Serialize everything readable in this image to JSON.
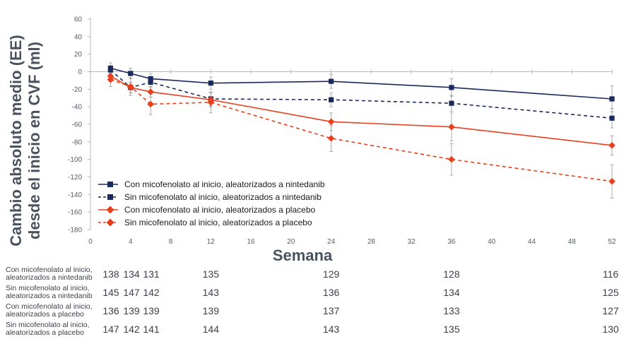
{
  "chart_data": {
    "type": "line",
    "ylabel_line1": "Cambio absoluto medio (EE)",
    "ylabel_line2": "desde el inicio en CVF (ml)",
    "xlabel": "Semana",
    "ylim": [
      -180,
      60
    ],
    "xlim": [
      0,
      52
    ],
    "yticks": [
      "60",
      "40",
      "20",
      "0",
      "-20",
      "-40",
      "-60",
      "-80",
      "-100",
      "-120",
      "-140",
      "-160",
      "-180"
    ],
    "xticks": [
      "0",
      "4",
      "8",
      "12",
      "16",
      "20",
      "24",
      "28",
      "32",
      "36",
      "40",
      "44",
      "48",
      "52"
    ],
    "grid": "horizontal line at 0",
    "legend_position": "bottom-left",
    "series": [
      {
        "name": "Con micofenolato al inicio, aleatorizados a nintedanib",
        "color": "#1b2a5c",
        "line": "solid",
        "marker": "square",
        "x": [
          2,
          4,
          6,
          12,
          24,
          36,
          52
        ],
        "y": [
          4,
          -2,
          -8,
          -13,
          -11,
          -18,
          -31
        ],
        "err": [
          6,
          6,
          6,
          7,
          8,
          10,
          15
        ]
      },
      {
        "name": "Sin micofenolato al inicio, aleatorizados a nintedanib",
        "color": "#1b2a5c",
        "line": "dashed",
        "marker": "square",
        "x": [
          2,
          4,
          6,
          12,
          24,
          36,
          52
        ],
        "y": [
          2,
          -18,
          -12,
          -31,
          -32,
          -36,
          -53
        ],
        "err": [
          5,
          6,
          6,
          8,
          8,
          9,
          11
        ]
      },
      {
        "name": "Con micofenolato al inicio, aleatorizados a placebo",
        "color": "#e8401c",
        "line": "solid",
        "marker": "diamond",
        "x": [
          2,
          4,
          6,
          12,
          24,
          36,
          52
        ],
        "y": [
          -5,
          -18,
          -23,
          -32,
          -57,
          -63,
          -84
        ],
        "err": [
          6,
          6,
          6,
          8,
          10,
          16,
          11
        ]
      },
      {
        "name": "Sin micofenolato al inicio, aleatorizados a placebo",
        "color": "#e8401c",
        "line": "dashed",
        "marker": "diamond",
        "x": [
          2,
          4,
          6,
          12,
          24,
          36,
          52
        ],
        "y": [
          -9,
          -17,
          -37,
          -35,
          -76,
          -100,
          -125
        ],
        "err": [
          8,
          10,
          12,
          12,
          15,
          18,
          19
        ]
      }
    ]
  },
  "numbers_at_risk": {
    "weeks": [
      2,
      4,
      6,
      12,
      24,
      36,
      52
    ],
    "rows": [
      {
        "label": "Con micofenolato al inicio, aleatorizados a nintedanib",
        "values": [
          "138",
          "134",
          "131",
          "135",
          "129",
          "128",
          "116"
        ]
      },
      {
        "label": "Sin micofenolato al inicio, aleatorizados a nintedanib",
        "values": [
          "145",
          "147",
          "142",
          "143",
          "136",
          "134",
          "125"
        ]
      },
      {
        "label": "Con micofenolato al inicio, aleatorizados a placebo",
        "values": [
          "136",
          "139",
          "139",
          "139",
          "137",
          "133",
          "127"
        ]
      },
      {
        "label": "Sin micofenolato al inicio, aleatorizados a placebo",
        "values": [
          "147",
          "142",
          "141",
          "144",
          "143",
          "135",
          "130"
        ]
      }
    ]
  }
}
